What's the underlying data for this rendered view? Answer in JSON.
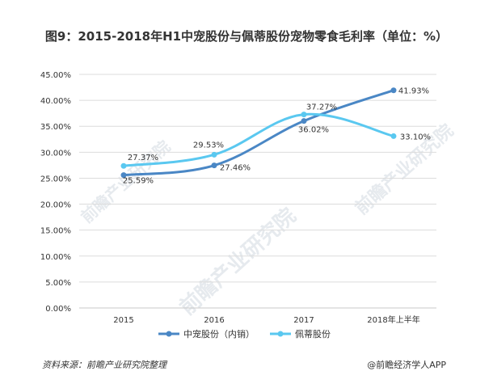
{
  "chart_data": {
    "type": "line",
    "title": "图9：2015-2018年H1中宠股份与佩蒂股份宠物零食毛利率（单位：%）",
    "categories": [
      "2015",
      "2016",
      "2017",
      "2018年上半年"
    ],
    "series": [
      {
        "name": "中宠股份（内销）",
        "values": [
          25.59,
          27.46,
          36.02,
          41.93
        ],
        "labels": [
          "25.59%",
          "27.46%",
          "36.02%",
          "41.93%"
        ],
        "color": "#4a87c5"
      },
      {
        "name": "佩蒂股份",
        "values": [
          27.37,
          29.53,
          37.27,
          33.1
        ],
        "labels": [
          "27.37%",
          "29.53%",
          "37.27%",
          "33.10%"
        ],
        "color": "#5ac8f0"
      }
    ],
    "ylim": [
      0,
      45
    ],
    "yticks": [
      0,
      5,
      10,
      15,
      20,
      25,
      30,
      35,
      40,
      45
    ],
    "ytick_labels": [
      "0.00%",
      "5.00%",
      "10.00%",
      "15.00%",
      "20.00%",
      "25.00%",
      "30.00%",
      "35.00%",
      "40.00%",
      "45.00%"
    ],
    "grid": true,
    "legend": "bottom"
  },
  "footer": {
    "source": "资料来源：前瞻产业研究院整理",
    "credit": "@前瞻经济学人APP"
  },
  "watermark": {
    "brand_text": "前瞻产业研究院"
  }
}
